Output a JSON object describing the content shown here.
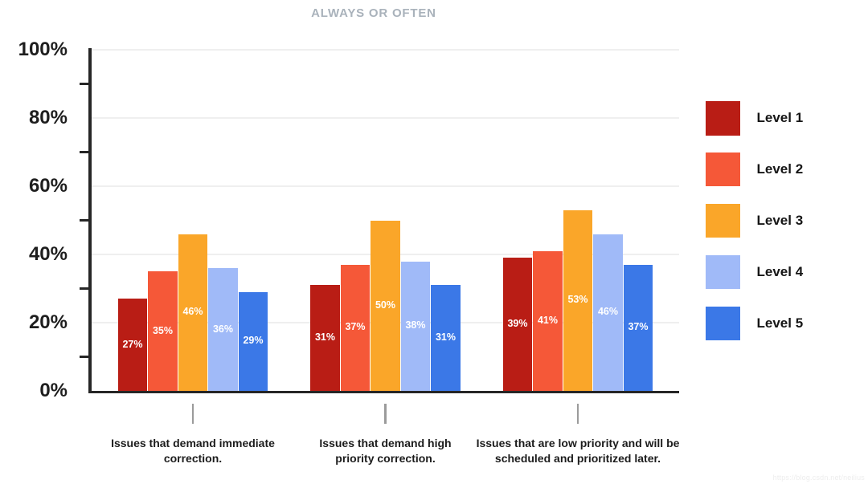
{
  "watermark": "https://blog.csdn.net/neilius",
  "chart_data": {
    "type": "bar",
    "title": "ALWAYS OR OFTEN",
    "categories": [
      "Issues that demand immediate correction.",
      "Issues that demand high priority correction.",
      "Issues that are low priority and will be scheduled and prioritized later."
    ],
    "series": [
      {
        "name": "Level 1",
        "color": "#b91d15",
        "values": [
          27,
          31,
          39
        ]
      },
      {
        "name": "Level 2",
        "color": "#f55838",
        "values": [
          35,
          37,
          41
        ]
      },
      {
        "name": "Level 3",
        "color": "#faa629",
        "values": [
          46,
          50,
          53
        ]
      },
      {
        "name": "Level 4",
        "color": "#a0baf8",
        "values": [
          36,
          38,
          46
        ]
      },
      {
        "name": "Level 5",
        "color": "#3b78e7",
        "values": [
          29,
          31,
          37
        ]
      }
    ],
    "value_label_format": "percent",
    "value_labels_shown": [
      "27%",
      "35%",
      "46%",
      "36%",
      "29%",
      "31%",
      "37%",
      "50%",
      "38%",
      "31%",
      "39%",
      "41%",
      "53%",
      "46%",
      "37%"
    ],
    "xlabel": "",
    "ylabel": "",
    "ylim": [
      0,
      100
    ],
    "yticks": [
      0,
      20,
      40,
      60,
      80,
      100
    ],
    "ytick_labels": [
      "0%",
      "20%",
      "40%",
      "60%",
      "80%",
      "100%"
    ],
    "minor_yticks": [
      10,
      30,
      50,
      70,
      90
    ],
    "grid": true,
    "legend_position": "right",
    "legend_entries": [
      "Level 1",
      "Level 2",
      "Level 3",
      "Level 4",
      "Level 5"
    ]
  }
}
